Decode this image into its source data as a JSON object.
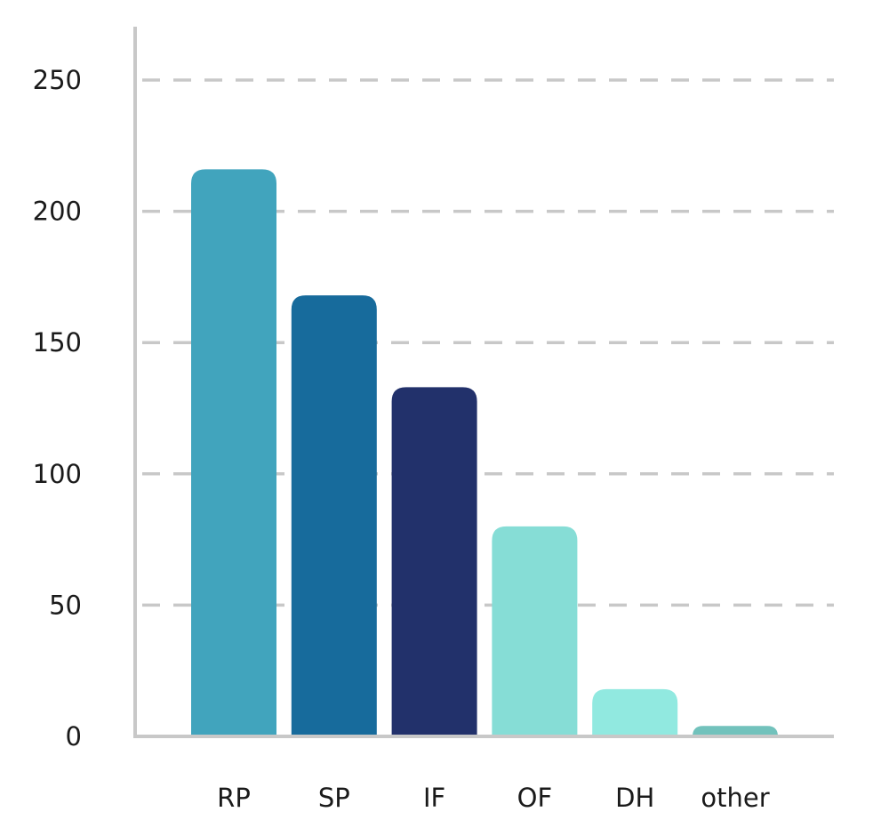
{
  "chart_data": {
    "type": "bar",
    "title": "",
    "xlabel": "",
    "ylabel": "",
    "categories": [
      "RP",
      "SP",
      "IF",
      "OF",
      "DH",
      "other"
    ],
    "values": [
      216,
      168,
      133,
      80,
      18,
      4
    ],
    "colors": [
      "#41a4bd",
      "#176b9c",
      "#22316b",
      "#86ddd6",
      "#91e9e0",
      "#72c2bc"
    ],
    "ylim": [
      0,
      250
    ],
    "yticks": [
      0,
      50,
      100,
      150,
      200,
      250
    ],
    "grid": true,
    "grid_color": "#c8c8c8",
    "axis_color": "#c8c8c8",
    "legend": "none"
  }
}
